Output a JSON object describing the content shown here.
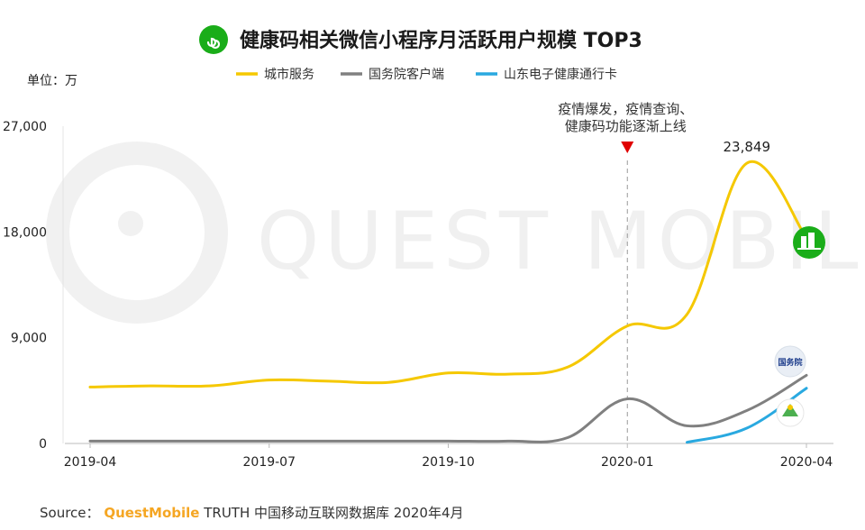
{
  "chart_data": {
    "type": "line",
    "title": "健康码相关微信小程序月活跃用户规模 TOP3",
    "unit_label": "单位：万",
    "y_ticks": [
      "27,000",
      "18,000",
      "9,000",
      "0"
    ],
    "y_tick_values": [
      27000,
      18000,
      9000,
      0
    ],
    "ylim": [
      0,
      27000
    ],
    "x_ticks": [
      "2019-04",
      "2019-07",
      "2019-10",
      "2020-01",
      "2020-04"
    ],
    "x_tick_values": [
      "2019-04",
      "2019-07",
      "2019-10",
      "2020-01",
      "2020-04"
    ],
    "xlim": [
      "2019-04",
      "2020-04"
    ],
    "annotation_lines": [
      "疫情爆发，疫情查询、",
      "健康码功能逐渐上线"
    ],
    "annotation_x": "2020-01",
    "peak_label": "23,849",
    "series": [
      {
        "name": "城市服务",
        "color": "#f5c800",
        "points": [
          [
            "2019-04",
            4800
          ],
          [
            "2019-05",
            4900
          ],
          [
            "2019-06",
            4900
          ],
          [
            "2019-07",
            5400
          ],
          [
            "2019-08",
            5300
          ],
          [
            "2019-09",
            5200
          ],
          [
            "2019-10",
            6000
          ],
          [
            "2019-11",
            5900
          ],
          [
            "2019-12",
            6500
          ],
          [
            "2020-01",
            10000
          ],
          [
            "2020-02",
            11000
          ],
          [
            "2020-03",
            23849
          ],
          [
            "2020-04",
            17500
          ]
        ]
      },
      {
        "name": "国务院客户端",
        "color": "#808080",
        "points": [
          [
            "2019-04",
            200
          ],
          [
            "2019-05",
            200
          ],
          [
            "2019-06",
            200
          ],
          [
            "2019-07",
            200
          ],
          [
            "2019-08",
            200
          ],
          [
            "2019-09",
            200
          ],
          [
            "2019-10",
            200
          ],
          [
            "2019-11",
            200
          ],
          [
            "2019-12",
            500
          ],
          [
            "2020-01",
            3800
          ],
          [
            "2020-02",
            1500
          ],
          [
            "2020-03",
            2800
          ],
          [
            "2020-04",
            5800
          ]
        ]
      },
      {
        "name": "山东电子健康通行卡",
        "color": "#29a9e0",
        "points": [
          [
            "2020-02",
            100
          ],
          [
            "2020-03",
            1300
          ],
          [
            "2020-04",
            4700
          ]
        ]
      }
    ]
  },
  "source": {
    "label": "Source：",
    "brand": "QuestMobile",
    "text": "TRUTH 中国移动互联网数据库 2020年4月"
  },
  "watermark": "QUEST MOBILE",
  "icons": [
    "mini-program-icon",
    "city-service-icon",
    "state-council-icon",
    "shandong-card-icon",
    "down-triangle-icon"
  ]
}
